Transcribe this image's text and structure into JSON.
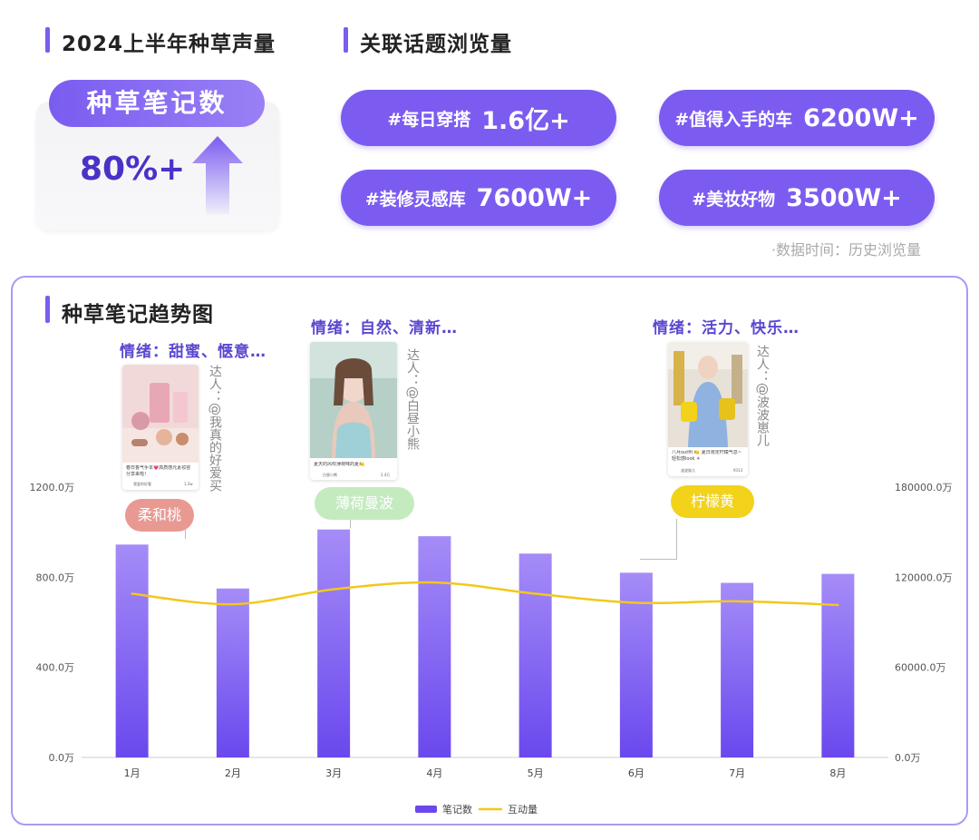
{
  "header": {
    "left_title": "2024上半年种草声量",
    "right_title": "关联话题浏览量"
  },
  "kpi": {
    "label": "种草笔记数",
    "value": "80%+"
  },
  "topics": [
    {
      "name": "#每日穿搭",
      "value": "1.6亿+"
    },
    {
      "name": "#值得入手的车",
      "value": "6200W+"
    },
    {
      "name": "#装修灵感库",
      "value": "7600W+"
    },
    {
      "name": "#美妆好物",
      "value": "3500W+"
    }
  ],
  "data_note": "·数据时间：历史浏览量",
  "trend": {
    "title": "种草笔记趋势图",
    "callouts": [
      {
        "emotion": "情绪：甜蜜、惬意…",
        "author": "达人：@我真的好爱买",
        "tag": "柔和桃",
        "caption": "春日香气手本💗高质感元素妆容分享来啦！",
        "meta_user": "我爱的好看",
        "meta_likes": "1.2w"
      },
      {
        "emotion": "情绪：自然、清新…",
        "author": "达人：@白昼小熊",
        "tag": "薄荷曼波",
        "caption": "夏天的风吹薄荷味的夏🍋",
        "meta_user": "白昼小熊",
        "meta_likes": "2.4万"
      },
      {
        "emotion": "情绪：活力、快乐…",
        "author": "达人：@波波崽儿",
        "tag": "柠檬黄",
        "caption": "八月outfit 🍋 夏日限定柠檬气息~ 轻松感look ☀",
        "meta_user": "波波崽儿",
        "meta_likes": "9313"
      }
    ]
  },
  "colors": {
    "accent": "#7b5cf0",
    "bar_top": "#a58cf7",
    "bar_bottom": "#6a48ee",
    "line": "#f2c81c",
    "tag_peach": "#e89a92",
    "tag_mint": "#c4ebc0",
    "tag_yellow": "#f2d21a"
  },
  "chart_data": {
    "type": "bar",
    "categories": [
      "1月",
      "2月",
      "3月",
      "4月",
      "5月",
      "6月",
      "7月",
      "8月"
    ],
    "series": [
      {
        "name": "笔记数",
        "axis": "left",
        "type": "bar",
        "values": [
          945,
          750,
          1012,
          982,
          905,
          820,
          775,
          815
        ]
      },
      {
        "name": "互动量",
        "axis": "right",
        "type": "line",
        "values": [
          109000,
          102000,
          112000,
          116500,
          109000,
          103000,
          104000,
          101500
        ]
      }
    ],
    "left_axis": {
      "min": 0,
      "max": 1200,
      "ticks": [
        0,
        400,
        800,
        1200
      ],
      "tick_labels": [
        "0.0万",
        "400.0万",
        "800.0万",
        "1200.0万"
      ]
    },
    "right_axis": {
      "min": 0,
      "max": 180000,
      "ticks": [
        0,
        60000,
        120000,
        180000
      ],
      "tick_labels": [
        "0.0万",
        "60000.0万",
        "120000.0万",
        "180000.0万"
      ]
    },
    "legend": "bottom-center",
    "legend_items": [
      "笔记数",
      "互动量"
    ],
    "grid": false
  }
}
